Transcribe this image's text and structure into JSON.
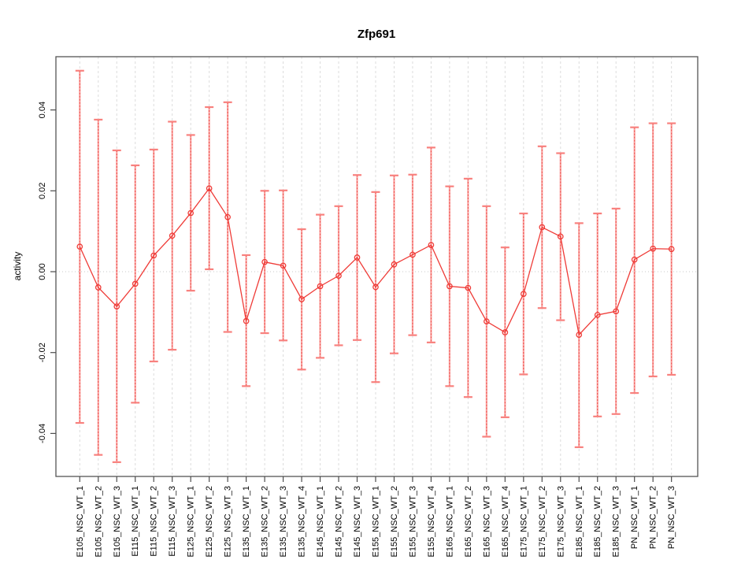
{
  "title": "Zfp691",
  "colors": {
    "series_red": "#ef3b37",
    "errorbar_pink": "#f9a7a5",
    "errorbar_cap": "#f8817e",
    "grid": "#dcdcdc",
    "zero_line": "#c9c9c9",
    "box": "#555555",
    "tick": "#4d4d4d",
    "text": "#000000",
    "background": "#ffffff"
  },
  "chart_data": {
    "type": "line",
    "title": "Zfp691",
    "xlabel": "",
    "ylabel": "activity",
    "ylim": [
      -0.0506,
      0.0532
    ],
    "yticks": [
      -0.04,
      -0.02,
      0,
      0.02,
      0.04
    ],
    "ytick_labels": [
      "-0.04",
      "-0.02",
      "0.00",
      "0.02",
      "0.04"
    ],
    "grid": "vertical-dashed",
    "zero_line": true,
    "legend_position": "none",
    "marker": "open-circle",
    "categories": [
      "E105_NSC_WT_1",
      "E105_NSC_WT_2",
      "E105_NSC_WT_3",
      "E115_NSC_WT_1",
      "E115_NSC_WT_2",
      "E115_NSC_WT_3",
      "E125_NSC_WT_1",
      "E125_NSC_WT_2",
      "E125_NSC_WT_3",
      "E135_NSC_WT_1",
      "E135_NSC_WT_2",
      "E135_NSC_WT_3",
      "E135_NSC_WT_4",
      "E145_NSC_WT_1",
      "E145_NSC_WT_2",
      "E145_NSC_WT_3",
      "E155_NSC_WT_1",
      "E155_NSC_WT_2",
      "E155_NSC_WT_3",
      "E155_NSC_WT_4",
      "E165_NSC_WT_1",
      "E165_NSC_WT_2",
      "E165_NSC_WT_3",
      "E165_NSC_WT_4",
      "E175_NSC_WT_1",
      "E175_NSC_WT_2",
      "E175_NSC_WT_3",
      "E185_NSC_WT_1",
      "E185_NSC_WT_2",
      "E185_NSC_WT_3",
      "PN_NSC_WT_1",
      "PN_NSC_WT_2",
      "PN_NSC_WT_3"
    ],
    "series": [
      {
        "name": "activity",
        "values": [
          0.0062,
          -0.0039,
          -0.0086,
          -0.003,
          0.004,
          0.0089,
          0.0145,
          0.0206,
          0.0135,
          -0.0122,
          0.0024,
          0.0015,
          -0.0068,
          -0.0036,
          -0.001,
          0.0035,
          -0.0038,
          0.0018,
          0.0042,
          0.0066,
          -0.0036,
          -0.004,
          -0.0123,
          -0.015,
          -0.0055,
          0.011,
          0.0087,
          -0.0156,
          -0.0107,
          -0.0098,
          0.003,
          0.0057,
          0.0056
        ],
        "err_low": [
          -0.0374,
          -0.0453,
          -0.0471,
          -0.0324,
          -0.0222,
          -0.0193,
          -0.0047,
          0.0006,
          -0.0149,
          -0.0283,
          -0.0152,
          -0.017,
          -0.0242,
          -0.0213,
          -0.0182,
          -0.0169,
          -0.0273,
          -0.0202,
          -0.0157,
          -0.0175,
          -0.0283,
          -0.031,
          -0.0408,
          -0.036,
          -0.0254,
          -0.009,
          -0.012,
          -0.0434,
          -0.0358,
          -0.0352,
          -0.03,
          -0.0259,
          -0.0255
        ],
        "err_high": [
          0.0497,
          0.0376,
          0.03,
          0.0263,
          0.0302,
          0.0371,
          0.0338,
          0.0407,
          0.0419,
          0.0041,
          0.02,
          0.0201,
          0.0105,
          0.0141,
          0.0162,
          0.0239,
          0.0197,
          0.0238,
          0.024,
          0.0307,
          0.0211,
          0.023,
          0.0162,
          0.006,
          0.0144,
          0.031,
          0.0293,
          0.012,
          0.0144,
          0.0156,
          0.0357,
          0.0367,
          0.0367
        ]
      }
    ]
  }
}
